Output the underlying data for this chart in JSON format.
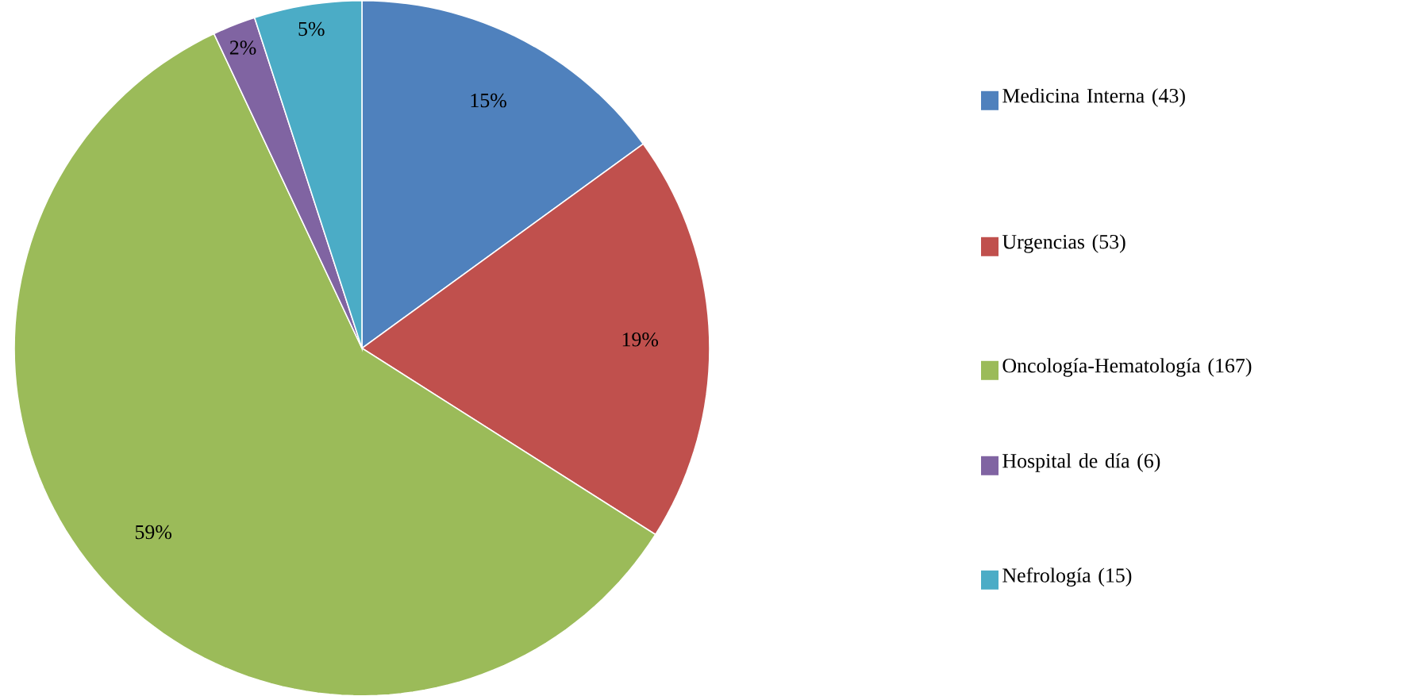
{
  "chart_data": {
    "type": "pie",
    "categories": [
      "Medicina Interna (43)",
      "Urgencias (53)",
      "Oncología-Hematología (167)",
      "Hospital de día (6)",
      "Nefrología (15)"
    ],
    "values": [
      15,
      19,
      59,
      2,
      5
    ],
    "value_labels": [
      "15%",
      "19%",
      "59%",
      "2%",
      "5%"
    ],
    "colors": [
      "#4f81bd",
      "#c0504d",
      "#9bbb59",
      "#8064a2",
      "#4bacc6"
    ],
    "legend": "right"
  }
}
